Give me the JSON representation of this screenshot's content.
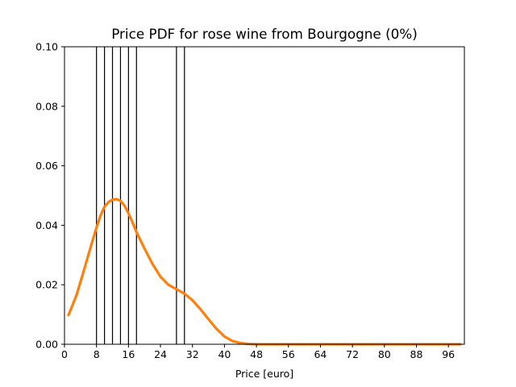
{
  "chart_data": {
    "type": "line",
    "title": "Price PDF for rose wine from Bourgogne (0%)",
    "xlabel": "Price [euro]",
    "ylabel": "",
    "xlim": [
      0,
      100
    ],
    "ylim": [
      0,
      0.1
    ],
    "x_ticks": [
      0,
      8,
      16,
      24,
      32,
      40,
      48,
      56,
      64,
      72,
      80,
      88,
      96
    ],
    "y_ticks": [
      0.0,
      0.02,
      0.04,
      0.06,
      0.08,
      0.1
    ],
    "x_tick_labels": [
      "0",
      "8",
      "16",
      "24",
      "32",
      "40",
      "48",
      "56",
      "64",
      "72",
      "80",
      "88",
      "96"
    ],
    "y_tick_labels": [
      "0.00",
      "0.02",
      "0.04",
      "0.06",
      "0.08",
      "0.10"
    ],
    "grid": false,
    "legend": "none",
    "vertical_lines": {
      "color": "#000000",
      "x": [
        8,
        10,
        12,
        14,
        16,
        18,
        28,
        30
      ]
    },
    "series": [
      {
        "color": "#ff7f0e",
        "x": [
          1,
          3,
          5,
          7,
          8,
          9,
          10,
          11,
          12,
          13,
          14,
          15,
          16,
          17,
          18,
          20,
          22,
          24,
          26,
          28,
          30,
          32,
          34,
          36,
          38,
          40,
          42,
          44,
          46,
          48,
          52,
          60,
          70,
          80,
          90,
          99
        ],
        "y": [
          0.0098,
          0.0165,
          0.0255,
          0.0348,
          0.0392,
          0.0432,
          0.0462,
          0.0478,
          0.0486,
          0.0488,
          0.0482,
          0.0466,
          0.044,
          0.041,
          0.0377,
          0.0322,
          0.027,
          0.0227,
          0.02,
          0.0185,
          0.017,
          0.0148,
          0.0118,
          0.0084,
          0.0052,
          0.0026,
          0.0011,
          0.0004,
          0.0001,
          0.0,
          0.0,
          0.0,
          0.0,
          0.0,
          0.0,
          0.0
        ]
      }
    ]
  }
}
